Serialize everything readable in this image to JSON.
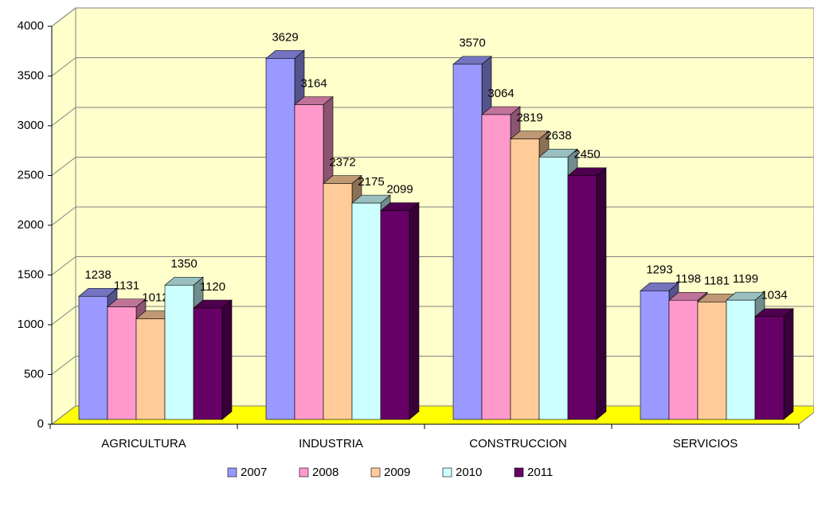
{
  "chart_data": {
    "type": "bar3d",
    "categories": [
      "AGRICULTURA",
      "INDUSTRIA",
      "CONSTRUCCION",
      "SERVICIOS"
    ],
    "series": [
      {
        "name": "2007",
        "color": "#9999ff",
        "values": [
          1238,
          3629,
          3570,
          1293
        ]
      },
      {
        "name": "2008",
        "color": "#ff99cc",
        "values": [
          1131,
          3164,
          3064,
          1198
        ]
      },
      {
        "name": "2009",
        "color": "#ffcc99",
        "values": [
          1012,
          2372,
          2819,
          1181
        ]
      },
      {
        "name": "2010",
        "color": "#ccffff",
        "values": [
          1350,
          2175,
          2638,
          1199
        ]
      },
      {
        "name": "2011",
        "color": "#660066",
        "values": [
          1120,
          2099,
          2450,
          1034
        ]
      }
    ],
    "ylim": [
      0,
      4000
    ],
    "yticks": [
      0,
      500,
      1000,
      1500,
      2000,
      2500,
      3000,
      3500,
      4000
    ],
    "grid": true,
    "legend": "bottom"
  }
}
